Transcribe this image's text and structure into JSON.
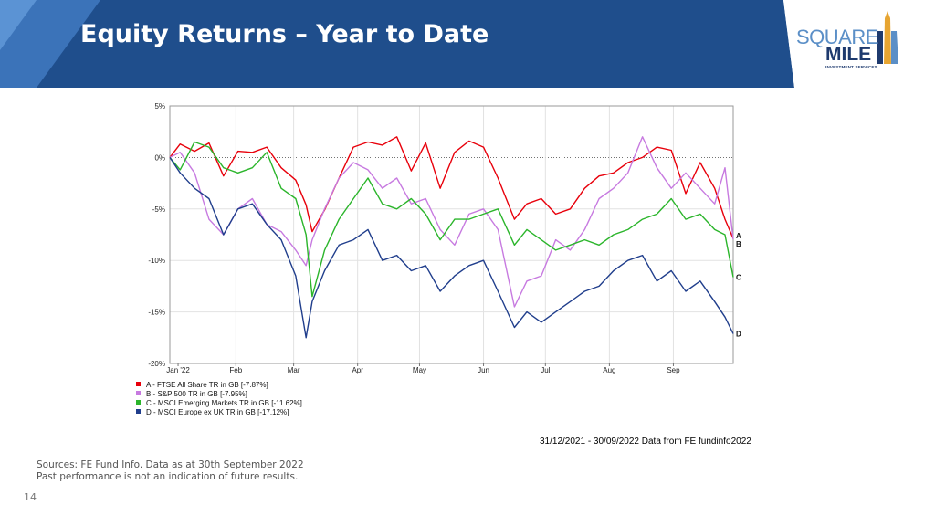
{
  "header": {
    "title": "Equity Returns – Year to Date",
    "logo_line1": "SQUARE",
    "logo_line2": "MILE",
    "logo_line3": "INVESTMENT SERVICES"
  },
  "colors": {
    "header_dark": "#1f4e8c",
    "header_light": "#3b73b9",
    "series_a": "#e8000b",
    "series_b": "#c77ae0",
    "series_c": "#2bb52b",
    "series_d": "#203e8c"
  },
  "chart_data": {
    "type": "line",
    "y_tick_labels": [
      "5%",
      "0%",
      "-5%",
      "-10%",
      "-15%",
      "-20%"
    ],
    "ylim": [
      -20,
      5
    ],
    "x_tick_labels": [
      "Jan '22",
      "Feb",
      "Mar",
      "Apr",
      "May",
      "Jun",
      "Jul",
      "Aug",
      "Sep"
    ],
    "x_tick_dates": [
      "2022-01-04",
      "2022-02-01",
      "2022-03-01",
      "2022-04-01",
      "2022-05-01",
      "2022-06-01",
      "2022-07-01",
      "2022-08-01",
      "2022-09-01"
    ],
    "xlim": [
      "2021-12-31",
      "2022-09-30"
    ],
    "grid": true,
    "zero_line": "dotted",
    "series": [
      {
        "name": "A - FTSE All Share TR in GB [-7.87%]",
        "end_label": "A",
        "x": [
          "2021-12-31",
          "2022-01-05",
          "2022-01-12",
          "2022-01-19",
          "2022-01-26",
          "2022-02-02",
          "2022-02-09",
          "2022-02-16",
          "2022-02-23",
          "2022-03-02",
          "2022-03-07",
          "2022-03-10",
          "2022-03-16",
          "2022-03-23",
          "2022-03-30",
          "2022-04-06",
          "2022-04-13",
          "2022-04-20",
          "2022-04-27",
          "2022-05-04",
          "2022-05-11",
          "2022-05-18",
          "2022-05-25",
          "2022-06-01",
          "2022-06-08",
          "2022-06-16",
          "2022-06-22",
          "2022-06-29",
          "2022-07-06",
          "2022-07-13",
          "2022-07-20",
          "2022-07-27",
          "2022-08-03",
          "2022-08-10",
          "2022-08-17",
          "2022-08-24",
          "2022-08-31",
          "2022-09-07",
          "2022-09-14",
          "2022-09-21",
          "2022-09-26",
          "2022-09-30"
        ],
        "y": [
          0,
          1.3,
          0.6,
          1.4,
          -1.8,
          0.6,
          0.5,
          1.0,
          -1.0,
          -2.2,
          -4.6,
          -7.2,
          -5.1,
          -2.0,
          1.0,
          1.5,
          1.2,
          2.0,
          -1.3,
          1.4,
          -3.0,
          0.5,
          1.6,
          1.0,
          -2.0,
          -6.0,
          -4.5,
          -4.0,
          -5.5,
          -5.0,
          -3.0,
          -1.8,
          -1.5,
          -0.5,
          0.0,
          1.0,
          0.7,
          -3.5,
          -0.5,
          -3.0,
          -6.0,
          -7.87
        ]
      },
      {
        "name": "B - S&P 500 TR in GB [-7.95%]",
        "end_label": "B",
        "x": [
          "2021-12-31",
          "2022-01-05",
          "2022-01-12",
          "2022-01-19",
          "2022-01-26",
          "2022-02-02",
          "2022-02-09",
          "2022-02-16",
          "2022-02-23",
          "2022-03-02",
          "2022-03-07",
          "2022-03-10",
          "2022-03-16",
          "2022-03-23",
          "2022-03-30",
          "2022-04-06",
          "2022-04-13",
          "2022-04-20",
          "2022-04-27",
          "2022-05-04",
          "2022-05-11",
          "2022-05-18",
          "2022-05-25",
          "2022-06-01",
          "2022-06-08",
          "2022-06-16",
          "2022-06-22",
          "2022-06-29",
          "2022-07-06",
          "2022-07-13",
          "2022-07-20",
          "2022-07-27",
          "2022-08-03",
          "2022-08-10",
          "2022-08-17",
          "2022-08-24",
          "2022-08-31",
          "2022-09-07",
          "2022-09-14",
          "2022-09-21",
          "2022-09-26",
          "2022-09-30"
        ],
        "y": [
          0,
          0.5,
          -1.5,
          -6.0,
          -7.5,
          -5.0,
          -4.0,
          -6.5,
          -7.2,
          -9.0,
          -10.5,
          -8.0,
          -5.0,
          -2.0,
          -0.5,
          -1.2,
          -3.0,
          -2.0,
          -4.5,
          -4.0,
          -7.0,
          -8.5,
          -5.5,
          -5.0,
          -7.0,
          -14.5,
          -12.0,
          -11.5,
          -8.0,
          -9.0,
          -7.0,
          -4.0,
          -3.0,
          -1.5,
          2.0,
          -1.0,
          -3.0,
          -1.5,
          -3.0,
          -4.5,
          -1.0,
          -7.95
        ]
      },
      {
        "name": "C - MSCI Emerging Markets TR in GB [-11.62%]",
        "end_label": "C",
        "x": [
          "2021-12-31",
          "2022-01-05",
          "2022-01-12",
          "2022-01-19",
          "2022-01-26",
          "2022-02-02",
          "2022-02-09",
          "2022-02-16",
          "2022-02-23",
          "2022-03-02",
          "2022-03-07",
          "2022-03-10",
          "2022-03-16",
          "2022-03-23",
          "2022-03-30",
          "2022-04-06",
          "2022-04-13",
          "2022-04-20",
          "2022-04-27",
          "2022-05-04",
          "2022-05-11",
          "2022-05-18",
          "2022-05-25",
          "2022-06-01",
          "2022-06-08",
          "2022-06-16",
          "2022-06-22",
          "2022-06-29",
          "2022-07-06",
          "2022-07-13",
          "2022-07-20",
          "2022-07-27",
          "2022-08-03",
          "2022-08-10",
          "2022-08-17",
          "2022-08-24",
          "2022-08-31",
          "2022-09-07",
          "2022-09-14",
          "2022-09-21",
          "2022-09-26",
          "2022-09-30"
        ],
        "y": [
          0,
          -1.2,
          1.5,
          1.0,
          -1.0,
          -1.5,
          -1.0,
          0.5,
          -3.0,
          -4.0,
          -7.5,
          -13.5,
          -9.0,
          -6.0,
          -4.0,
          -2.0,
          -4.5,
          -5.0,
          -4.0,
          -5.5,
          -8.0,
          -6.0,
          -6.0,
          -5.5,
          -5.0,
          -8.5,
          -7.0,
          -8.0,
          -9.0,
          -8.5,
          -8.0,
          -8.5,
          -7.5,
          -7.0,
          -6.0,
          -5.5,
          -4.0,
          -6.0,
          -5.5,
          -7.0,
          -7.5,
          -11.62
        ]
      },
      {
        "name": "D - MSCI Europe ex UK TR in GB [-17.12%]",
        "end_label": "D",
        "x": [
          "2021-12-31",
          "2022-01-05",
          "2022-01-12",
          "2022-01-19",
          "2022-01-26",
          "2022-02-02",
          "2022-02-09",
          "2022-02-16",
          "2022-02-23",
          "2022-03-02",
          "2022-03-07",
          "2022-03-10",
          "2022-03-16",
          "2022-03-23",
          "2022-03-30",
          "2022-04-06",
          "2022-04-13",
          "2022-04-20",
          "2022-04-27",
          "2022-05-04",
          "2022-05-11",
          "2022-05-18",
          "2022-05-25",
          "2022-06-01",
          "2022-06-08",
          "2022-06-16",
          "2022-06-22",
          "2022-06-29",
          "2022-07-06",
          "2022-07-13",
          "2022-07-20",
          "2022-07-27",
          "2022-08-03",
          "2022-08-10",
          "2022-08-17",
          "2022-08-24",
          "2022-08-31",
          "2022-09-07",
          "2022-09-14",
          "2022-09-21",
          "2022-09-26",
          "2022-09-30"
        ],
        "y": [
          0,
          -1.5,
          -3.0,
          -4.0,
          -7.5,
          -5.0,
          -4.5,
          -6.5,
          -8.0,
          -11.5,
          -17.5,
          -14.0,
          -11.0,
          -8.5,
          -8.0,
          -7.0,
          -10.0,
          -9.5,
          -11.0,
          -10.5,
          -13.0,
          -11.5,
          -10.5,
          -10.0,
          -13.0,
          -16.5,
          -15.0,
          -16.0,
          -15.0,
          -14.0,
          -13.0,
          -12.5,
          -11.0,
          -10.0,
          -9.5,
          -12.0,
          -11.0,
          -13.0,
          -12.0,
          -14.0,
          -15.5,
          -17.12
        ]
      }
    ],
    "caption": "31/12/2021 - 30/09/2022 Data from FE fundinfo2022"
  },
  "footer": {
    "sources": "Sources: FE Fund Info. Data as at 30th September 2022",
    "disclaimer": "Past performance is not an indication of future results.",
    "page_number": "14"
  }
}
